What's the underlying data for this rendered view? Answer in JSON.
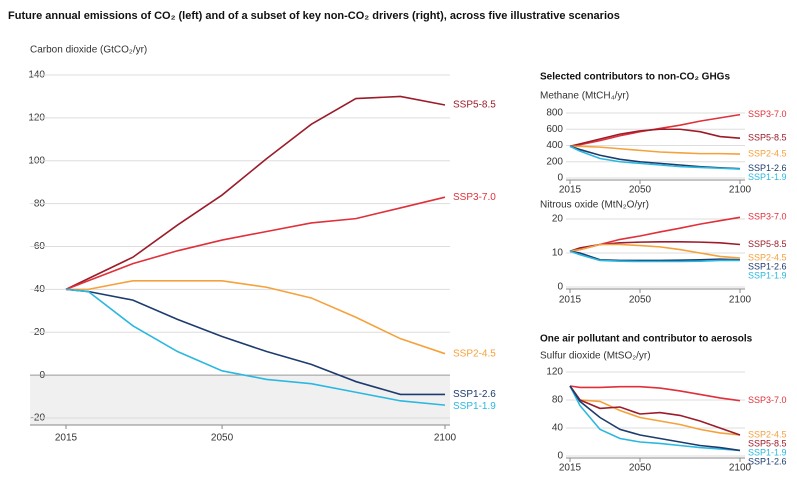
{
  "title": "Future annual emissions of CO₂ (left) and of a subset of key non-CO₂ drivers (right), across five illustrative scenarios",
  "chart_data": [
    {
      "type": "line",
      "y_label": "Carbon dioxide (GtCO₂/yr)",
      "shade_negative": true,
      "grid": true,
      "x": [
        2015,
        2020,
        2030,
        2040,
        2050,
        2060,
        2070,
        2080,
        2090,
        2100
      ],
      "xlim": [
        2015,
        2100
      ],
      "xticks": [
        2015,
        2050,
        2100
      ],
      "ylim": [
        -20,
        140
      ],
      "yticks": [
        -20,
        0,
        20,
        40,
        60,
        80,
        100,
        120,
        140
      ],
      "series": [
        {
          "name": "SSP5-8.5",
          "color": "#9b1c2a",
          "values": [
            40,
            45,
            55,
            70,
            84,
            101,
            117,
            129,
            130,
            126
          ]
        },
        {
          "name": "SSP3-7.0",
          "color": "#e0303a",
          "values": [
            40,
            44,
            52,
            58,
            63,
            67,
            71,
            73,
            78,
            83
          ]
        },
        {
          "name": "SSP2-4.5",
          "color": "#f5a13c",
          "values": [
            40,
            40,
            44,
            44,
            44,
            41,
            36,
            27,
            17,
            10
          ]
        },
        {
          "name": "SSP1-2.6",
          "color": "#1d3c6e",
          "values": [
            40,
            39,
            35,
            26,
            18,
            11,
            5,
            -3,
            -9,
            -9
          ]
        },
        {
          "name": "SSP1-1.9",
          "color": "#2bb8e0",
          "values": [
            40,
            39,
            23,
            11,
            2,
            -2,
            -4,
            -8,
            -12,
            -14
          ]
        }
      ]
    },
    {
      "type": "line",
      "section_title": "Selected contributors to non-CO₂ GHGs",
      "y_label": "Methane (MtCH₄/yr)",
      "grid": true,
      "x": [
        2015,
        2020,
        2030,
        2040,
        2050,
        2060,
        2070,
        2080,
        2090,
        2100
      ],
      "xlim": [
        2015,
        2100
      ],
      "xticks": [
        2015,
        2050,
        2100
      ],
      "ylim": [
        0,
        800
      ],
      "yticks": [
        0,
        200,
        400,
        600,
        800
      ],
      "series": [
        {
          "name": "SSP3-7.0",
          "color": "#e0303a",
          "values": [
            390,
            410,
            460,
            520,
            570,
            610,
            650,
            700,
            740,
            780
          ]
        },
        {
          "name": "SSP5-8.5",
          "color": "#9b1c2a",
          "values": [
            390,
            420,
            480,
            540,
            580,
            600,
            600,
            570,
            510,
            490
          ]
        },
        {
          "name": "SSP2-4.5",
          "color": "#f5a13c",
          "values": [
            390,
            390,
            380,
            360,
            340,
            320,
            310,
            300,
            300,
            295
          ]
        },
        {
          "name": "SSP1-2.6",
          "color": "#1d3c6e",
          "values": [
            390,
            350,
            280,
            230,
            200,
            180,
            160,
            140,
            125,
            115
          ]
        },
        {
          "name": "SSP1-1.9",
          "color": "#2bb8e0",
          "values": [
            390,
            330,
            240,
            200,
            180,
            160,
            140,
            130,
            120,
            110
          ]
        }
      ]
    },
    {
      "type": "line",
      "y_label": "Nitrous oxide (MtN₂O/yr)",
      "grid": true,
      "x": [
        2015,
        2020,
        2030,
        2040,
        2050,
        2060,
        2070,
        2080,
        2090,
        2100
      ],
      "xlim": [
        2015,
        2100
      ],
      "xticks": [
        2015,
        2050,
        2100
      ],
      "ylim": [
        0,
        20
      ],
      "yticks": [
        0,
        10,
        20
      ],
      "series": [
        {
          "name": "SSP3-7.0",
          "color": "#e0303a",
          "values": [
            10.5,
            11,
            12.5,
            14,
            15,
            16.2,
            17.3,
            18.5,
            19.5,
            20.5
          ]
        },
        {
          "name": "SSP5-8.5",
          "color": "#9b1c2a",
          "values": [
            10.5,
            11.5,
            12.5,
            13,
            13.2,
            13.3,
            13.3,
            13.2,
            13,
            12.5
          ]
        },
        {
          "name": "SSP2-4.5",
          "color": "#f5a13c",
          "values": [
            10.5,
            11,
            12.5,
            12.5,
            12.2,
            11.8,
            11,
            10,
            9,
            8.5
          ]
        },
        {
          "name": "SSP1-2.6",
          "color": "#1d3c6e",
          "values": [
            10.5,
            10,
            8,
            7.8,
            7.8,
            7.8,
            7.9,
            8,
            8.2,
            8
          ]
        },
        {
          "name": "SSP1-1.9",
          "color": "#2bb8e0",
          "values": [
            10.5,
            9.5,
            7.8,
            7.6,
            7.5,
            7.5,
            7.5,
            7.6,
            7.8,
            7.8
          ]
        }
      ]
    },
    {
      "type": "line",
      "section_title": "One air pollutant and contributor to aerosols",
      "y_label": "Sulfur dioxide (MtSO₂/yr)",
      "grid": true,
      "x": [
        2015,
        2020,
        2030,
        2040,
        2050,
        2060,
        2070,
        2080,
        2090,
        2100
      ],
      "xlim": [
        2015,
        2100
      ],
      "xticks": [
        2015,
        2050,
        2100
      ],
      "ylim": [
        0,
        120
      ],
      "yticks": [
        0,
        40,
        80,
        120
      ],
      "series": [
        {
          "name": "SSP3-7.0",
          "color": "#e0303a",
          "values": [
            100,
            98,
            98,
            99,
            99,
            97,
            93,
            88,
            83,
            79
          ]
        },
        {
          "name": "SSP2-4.5",
          "color": "#f5a13c",
          "values": [
            100,
            80,
            78,
            65,
            55,
            50,
            45,
            38,
            33,
            30
          ]
        },
        {
          "name": "SSP5-8.5",
          "color": "#9b1c2a",
          "values": [
            100,
            80,
            68,
            70,
            60,
            62,
            58,
            50,
            40,
            30
          ]
        },
        {
          "name": "SSP1-1.9",
          "color": "#2bb8e0",
          "values": [
            100,
            72,
            38,
            25,
            20,
            18,
            15,
            12,
            10,
            8
          ]
        },
        {
          "name": "SSP1-2.6",
          "color": "#1d3c6e",
          "values": [
            100,
            78,
            55,
            38,
            30,
            25,
            20,
            15,
            12,
            8
          ]
        }
      ]
    }
  ]
}
